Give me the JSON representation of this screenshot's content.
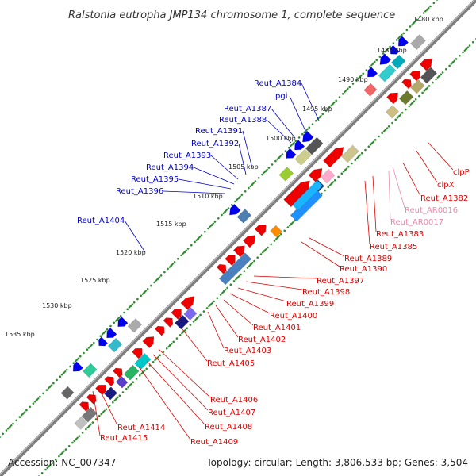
{
  "title": "Ralstonia eutropha JMP134 chromosome 1, complete sequence",
  "accession": "Accession: NC_007347",
  "summary": "Topology: circular; Length: 3,806,533 bp; Genes: 3,504",
  "colors": {
    "backbone": "#808080",
    "tick": "#2e8b2e",
    "plus_label": "#0000cc",
    "minus_label": "#dd0000",
    "rna_label": "#ee88aa"
  },
  "scale_labels": [
    {
      "text": "1480 kbp"
    },
    {
      "text": "1485 kbp"
    },
    {
      "text": "1490 kbp"
    },
    {
      "text": "1495 kbp"
    },
    {
      "text": "1500 kbp"
    },
    {
      "text": "1505 kbp"
    },
    {
      "text": "1510 kbp"
    },
    {
      "text": "1515 kbp"
    },
    {
      "text": "1520 kbp"
    },
    {
      "text": "1525 kbp"
    },
    {
      "text": "1530 kbp"
    },
    {
      "text": "1535 kbp"
    }
  ],
  "plus_labels": [
    "Reut_A1384",
    "pgi",
    "Reut_A1387",
    "Reut_A1388",
    "Reut_A1391",
    "Reut_A1392",
    "Reut_A1393",
    "Reut_A1394",
    "Reut_A1395",
    "Reut_A1396",
    "Reut_A1404"
  ],
  "minus_labels": [
    "clpP",
    "clpX",
    "Reut_A1382",
    "Reut_AR0016",
    "Reut_AR0017",
    "Reut_A1383",
    "Reut_A1385",
    "Reut_A1389",
    "Reut_A1390",
    "Reut_A1397",
    "Reut_A1398",
    "Reut_A1399",
    "Reut_A1400",
    "Reut_A1401",
    "Reut_A1402",
    "Reut_A1403",
    "Reut_A1405",
    "Reut_A1406",
    "Reut_A1407",
    "Reut_A1408",
    "Reut_A1409",
    "Reut_A1414",
    "Reut_A1415"
  ],
  "rna_genes": [
    "Reut_AR0016",
    "Reut_AR0017"
  ]
}
